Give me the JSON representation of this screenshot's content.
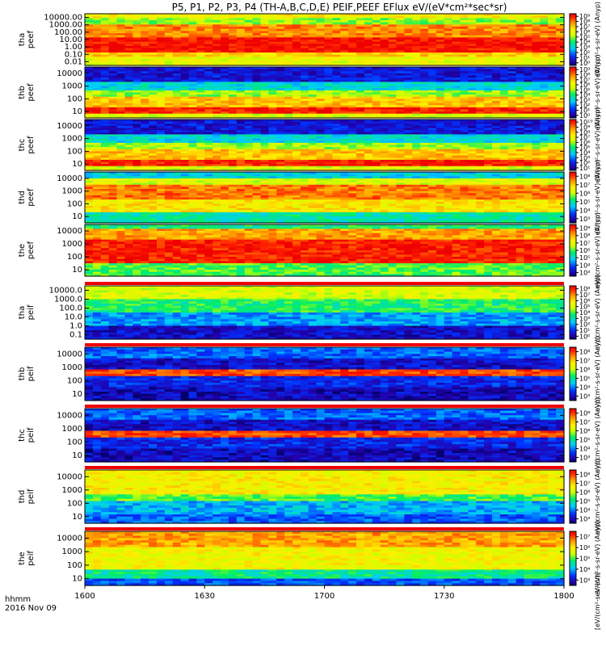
{
  "chart_data": {
    "type": "heatmap",
    "title": "P5, P1, P2, P3, P4 (TH-A,B,C,D,E) PEIF,PEEF EFlux eV/(eV*cm²*sec*sr)",
    "time_label": "hhmm",
    "date_label": "2016 Nov 09",
    "x_ticks": [
      "1600",
      "1630",
      "1700",
      "1730",
      "1800"
    ],
    "x_range_minutes": [
      0,
      120
    ],
    "colormap": "rainbow",
    "colorbar_label": "[eV/(cm²-s-sr-eV)]",
    "panels": [
      {
        "id": "tha-peef",
        "probe": "tha",
        "product": "peef",
        "species": "electron",
        "y_ticks": [
          "10000.00",
          "1000.00",
          "100.00",
          "10.00",
          "1.00",
          "0.10",
          "0.01"
        ],
        "cb_ticks": [
          "10⁹",
          "10⁸",
          "10⁷",
          "10⁶",
          "10⁵",
          "10⁴",
          "10³",
          "10²",
          "10¹",
          "10⁰"
        ],
        "cb_label": "eV/(cm²-s-sr-eV) (Anyp)"
      },
      {
        "id": "thb-peef",
        "probe": "thb",
        "product": "peef",
        "species": "electron",
        "y_ticks": [
          "10000",
          "1000",
          "100",
          "10"
        ],
        "cb_ticks": [
          "10⁹",
          "10⁸",
          "10⁷",
          "10⁶",
          "10⁵",
          "10⁴",
          "10³",
          "10²",
          "10¹",
          "10⁰"
        ],
        "cb_label": "eV/(cm²-s-sr-eV) (Anyp)"
      },
      {
        "id": "thc-peef",
        "probe": "thc",
        "product": "peef",
        "species": "electron",
        "y_ticks": [
          "10000",
          "1000",
          "100",
          "10"
        ],
        "cb_ticks": [
          "10¹⁰",
          "10⁹",
          "10⁸",
          "10⁷",
          "10⁶",
          "10⁵",
          "10⁴",
          "10³",
          "10²",
          "10¹"
        ],
        "cb_label": "eV/(cm²-s-sr-eV) (Anyp)"
      },
      {
        "id": "thd-peef",
        "probe": "thd",
        "product": "peef",
        "species": "electron",
        "y_ticks": [
          "10000",
          "1000",
          "100",
          "10"
        ],
        "cb_ticks": [
          "10⁸",
          "10⁷",
          "10⁶",
          "10⁵",
          "10⁴",
          "10³"
        ],
        "cb_label": "eV/(cm²-s-sr-eV) (Anyp)"
      },
      {
        "id": "the-peef",
        "probe": "the",
        "product": "peef",
        "species": "electron",
        "y_ticks": [
          "10000",
          "1000",
          "100",
          "10"
        ],
        "cb_ticks": [
          "10⁹",
          "10⁸",
          "10⁷",
          "10⁶",
          "10⁵",
          "10⁴",
          "10³"
        ],
        "cb_label": "eV/(cm²-s-sr-eV) (Anyp)"
      },
      {
        "id": "tha-peif",
        "probe": "tha",
        "product": "peif",
        "species": "ion",
        "y_ticks": [
          "10000.0",
          "1000.0",
          "100.0",
          "10.0",
          "1.0",
          "0.1"
        ],
        "cb_ticks": [
          "10⁸",
          "10⁷",
          "10⁶",
          "10⁵",
          "10⁴",
          "10³",
          "10²",
          "10¹",
          "10⁰"
        ],
        "cb_label": "eV/(cm²-s-sr-eV) (Anyp)"
      },
      {
        "id": "thb-peif",
        "probe": "thb",
        "product": "peif",
        "species": "ion",
        "y_ticks": [
          "10000",
          "1000",
          "100",
          "10"
        ],
        "cb_ticks": [
          "10⁸",
          "10⁷",
          "10⁶",
          "10⁵",
          "10⁴",
          "10³"
        ],
        "cb_label": "eV/(cm²-s-sr-eV) (Anyp)"
      },
      {
        "id": "thc-peif",
        "probe": "thc",
        "product": "peif",
        "species": "ion",
        "y_ticks": [
          "10000",
          "1000",
          "100",
          "10"
        ],
        "cb_ticks": [
          "10⁸",
          "10⁷",
          "10⁶",
          "10⁵",
          "10⁴",
          "10³"
        ],
        "cb_label": "eV/(cm²-s-sr-eV) (Anyp)"
      },
      {
        "id": "thd-peif",
        "probe": "thd",
        "product": "peif",
        "species": "ion",
        "y_ticks": [
          "10000",
          "1000",
          "100",
          "10"
        ],
        "cb_ticks": [
          "10⁸",
          "10⁷",
          "10⁶",
          "10⁵",
          "10⁴",
          "10³"
        ],
        "cb_label": "eV/(cm²-s-sr-eV) (Anyp)"
      },
      {
        "id": "the-peif",
        "probe": "the",
        "product": "peif",
        "species": "ion",
        "y_ticks": [
          "10000",
          "1000",
          "100",
          "10"
        ],
        "cb_ticks": [
          "10⁷",
          "10⁶",
          "10⁵",
          "10⁴",
          "10³"
        ],
        "cb_label": "eV/(cm²-s-sr-eV) (Anyp)"
      }
    ]
  }
}
